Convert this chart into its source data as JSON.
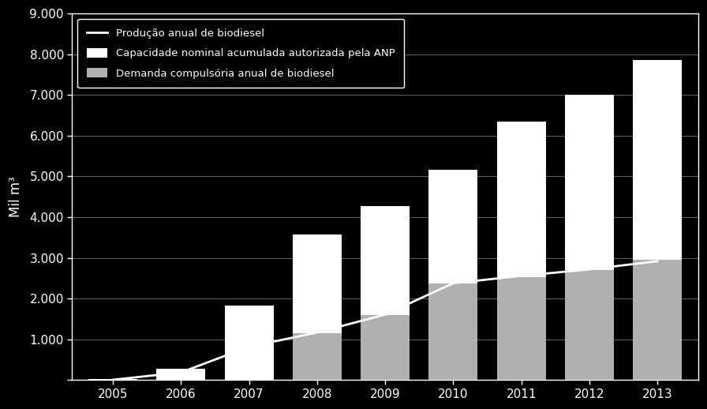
{
  "years": [
    2005,
    2006,
    2007,
    2008,
    2009,
    2010,
    2011,
    2012,
    2013
  ],
  "capacidade_nominal": [
    30,
    280,
    1840,
    3580,
    4270,
    5170,
    6350,
    7000,
    7850
  ],
  "demanda_compulsoria": [
    0,
    0,
    0,
    1150,
    1600,
    2380,
    2520,
    2700,
    2950
  ],
  "producao": [
    10,
    190,
    820,
    1170,
    1610,
    2380,
    2560,
    2720,
    2920
  ],
  "bg_color": "#000000",
  "bar_color_capacidade": "#ffffff",
  "bar_color_demanda": "#b0b0b0",
  "line_color": "#ffffff",
  "text_color": "#ffffff",
  "grid_color": "#666666",
  "ylim": [
    0,
    9000
  ],
  "yticks": [
    0,
    1000,
    2000,
    3000,
    4000,
    5000,
    6000,
    7000,
    8000,
    9000
  ],
  "ylabel": "Mil m³",
  "legend_labels": [
    "Capacidade nominal acumulada autorizada pela ANP",
    "Demanda compulsória anual de biodiesel",
    "Produção anual de biodiesel"
  ]
}
